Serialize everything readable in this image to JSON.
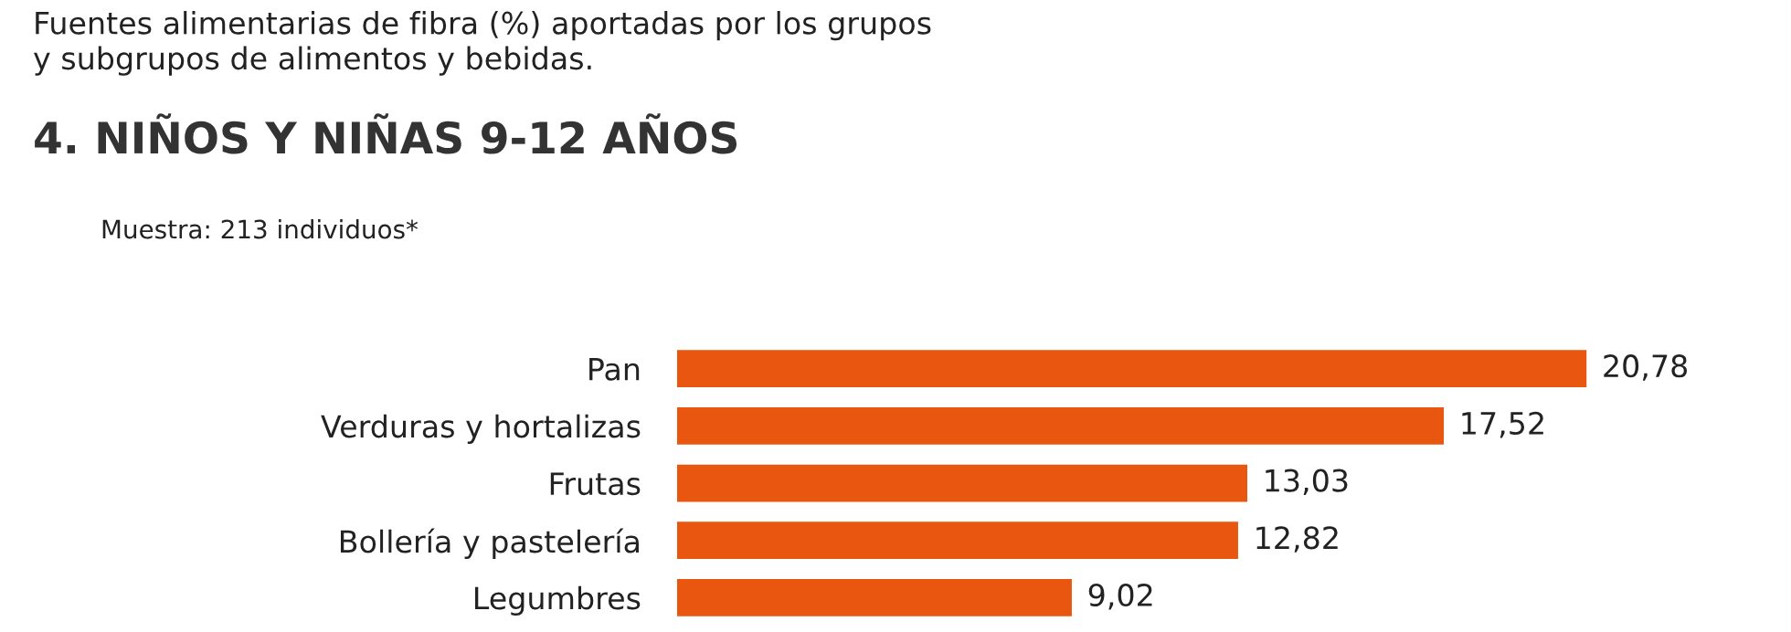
{
  "chart_data": {
    "type": "bar",
    "orientation": "horizontal",
    "title": "Fuentes alimentarias de fibra (%) aportadas por los grupos\ny subgrupos de alimentos y bebidas.",
    "subtitle": "4. NIÑOS Y NIÑAS 9-12 AÑOS",
    "annotations": [
      "Muestra: 213 individuos*"
    ],
    "categories": [
      "Pan",
      "Verduras y hortalizas",
      "Frutas",
      "Bollería y pastelería",
      "Legumbres"
    ],
    "values": [
      20.78,
      17.52,
      13.03,
      12.82,
      9.02
    ],
    "value_labels": [
      "20,78",
      "17,52",
      "13,03",
      "12,82",
      "9,02"
    ],
    "color": "#e8560f",
    "grid": false,
    "legend": false
  }
}
